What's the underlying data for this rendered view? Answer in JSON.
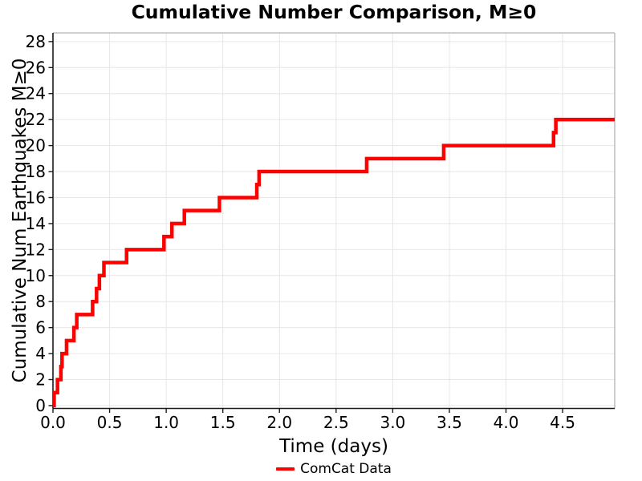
{
  "figure": {
    "title": "Cumulative Number Comparison, M≥0"
  },
  "legend": {
    "label": "ComCat Data",
    "color": "#ff0000",
    "position": "bottom-center",
    "frame": false
  },
  "chart_data": {
    "type": "line",
    "style": "step-post",
    "title": "Cumulative Number Comparison, M≥0",
    "xlabel": "Time (days)",
    "ylabel": "Cumulative Num Earthquakes M≥0",
    "xlim": [
      0,
      4.96
    ],
    "ylim": [
      -0.22,
      28.67
    ],
    "xticks": [
      0.0,
      0.5,
      1.0,
      1.5,
      2.0,
      2.5,
      3.0,
      3.5,
      4.0,
      4.5
    ],
    "xtick_labels": [
      "0.0",
      "0.5",
      "1.0",
      "1.5",
      "2.0",
      "2.5",
      "3.0",
      "3.5",
      "4.0",
      "4.5"
    ],
    "yticks": [
      0,
      2,
      4,
      6,
      8,
      10,
      12,
      14,
      16,
      18,
      20,
      22,
      24,
      26,
      28
    ],
    "grid": true,
    "grid_color": "#e6e6e6",
    "spine_color_main": "#1a1a1a",
    "spine_color_light": "#b3b3b3",
    "tick_color": "#1a1a1a",
    "text_color": "#000000",
    "series": [
      {
        "name": "ComCat Data",
        "color": "#ff0000",
        "line_width": 4.5,
        "start": [
          0,
          0
        ],
        "event_times": [
          0.01,
          0.04,
          0.07,
          0.08,
          0.12,
          0.185,
          0.21,
          0.35,
          0.385,
          0.41,
          0.45,
          0.65,
          0.98,
          1.05,
          1.16,
          1.47,
          1.8,
          1.82,
          2.77,
          3.45,
          4.42,
          4.44
        ],
        "cumulative_counts": [
          1,
          2,
          3,
          4,
          5,
          6,
          7,
          8,
          9,
          10,
          11,
          12,
          13,
          14,
          15,
          16,
          17,
          18,
          19,
          20,
          21,
          22
        ],
        "x_end": 4.96,
        "final_count": 22
      }
    ]
  }
}
